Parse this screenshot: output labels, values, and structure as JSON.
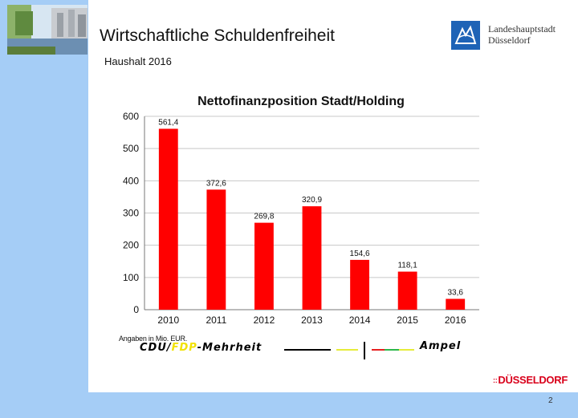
{
  "slide": {
    "title": "Wirtschaftliche Schuldenfreiheit",
    "subtitle": "Haushalt 2016",
    "page_number": "2"
  },
  "organization": {
    "line1": "Landeshauptstadt",
    "line2": "Düsseldorf",
    "brand": "DÜSSELDORF",
    "brand_dots": "::"
  },
  "colors": {
    "band": "#a5cdf6",
    "bar": "#ff0000",
    "brand_red": "#d9001b"
  },
  "chart_data": {
    "type": "bar",
    "title": "Nettofinanzposition Stadt/Holding",
    "categories": [
      "2010",
      "2011",
      "2012",
      "2013",
      "2014",
      "2015",
      "2016"
    ],
    "values": [
      561.4,
      372.6,
      269.8,
      320.9,
      154.6,
      118.1,
      33.6
    ],
    "value_labels": [
      "561,4",
      "372,6",
      "269,8",
      "320,9",
      "154,6",
      "118,1",
      "33,6"
    ],
    "yticks": [
      0,
      100,
      200,
      300,
      400,
      500,
      600
    ],
    "ylim": [
      0,
      600
    ],
    "xlabel": "",
    "ylabel": "",
    "grid": true,
    "legend": "none",
    "bar_color": "#ff0000"
  },
  "note": "Angaben in Mio. EUR.",
  "coalition": {
    "cdu": "CDU/",
    "fdp": "FDP",
    "rest": "-Mehrheit",
    "ampel": "Ampel",
    "line_colors": [
      "#000000",
      "#e6ec3a",
      "#e62020",
      "#2db64b",
      "#e6ec3a"
    ]
  }
}
